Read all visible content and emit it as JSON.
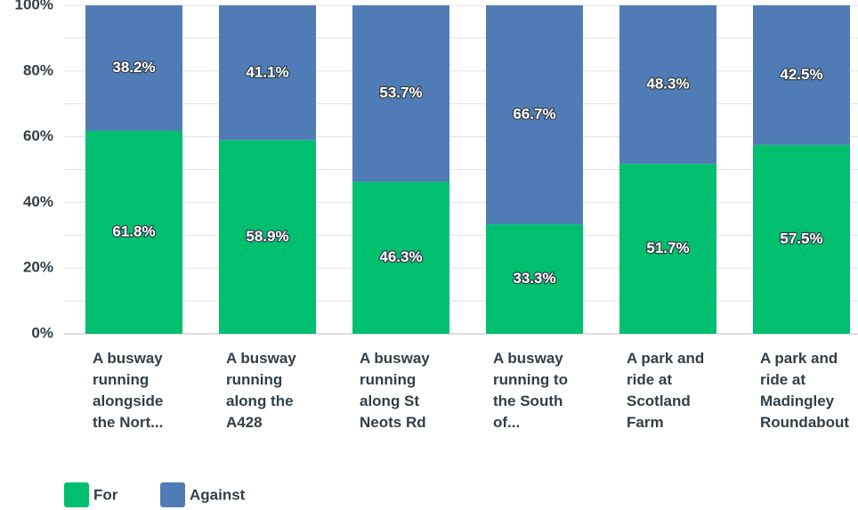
{
  "chart_data": {
    "type": "bar",
    "stacked": true,
    "categories": [
      [
        "A busway",
        "running",
        "alongside",
        "the Nort..."
      ],
      [
        "A busway",
        "running",
        "along the",
        "A428"
      ],
      [
        "A busway",
        "running",
        "along St",
        "Neots Rd"
      ],
      [
        "A busway",
        "running to",
        "the South",
        "of..."
      ],
      [
        "A park and",
        "ride at",
        "Scotland",
        "Farm"
      ],
      [
        "A park and",
        "ride at",
        "Madingley",
        "Roundabout"
      ]
    ],
    "series": [
      {
        "name": "For",
        "color": "#00bf6f",
        "values": [
          61.8,
          58.9,
          46.3,
          33.3,
          51.7,
          57.5
        ],
        "labels": [
          "61.8%",
          "58.9%",
          "46.3%",
          "33.3%",
          "51.7%",
          "57.5%"
        ]
      },
      {
        "name": "Against",
        "color": "#507cb6",
        "values": [
          38.2,
          41.1,
          53.7,
          66.7,
          48.3,
          42.5
        ],
        "labels": [
          "38.2%",
          "41.1%",
          "53.7%",
          "66.7%",
          "48.3%",
          "42.5%"
        ]
      }
    ],
    "ylim": [
      0,
      100
    ],
    "y_ticks": [
      0,
      20,
      40,
      60,
      80,
      100
    ],
    "y_tick_labels": [
      "0%",
      "20%",
      "40%",
      "60%",
      "80%",
      "100%"
    ],
    "grid": true,
    "legend_position": "bottom-left"
  }
}
